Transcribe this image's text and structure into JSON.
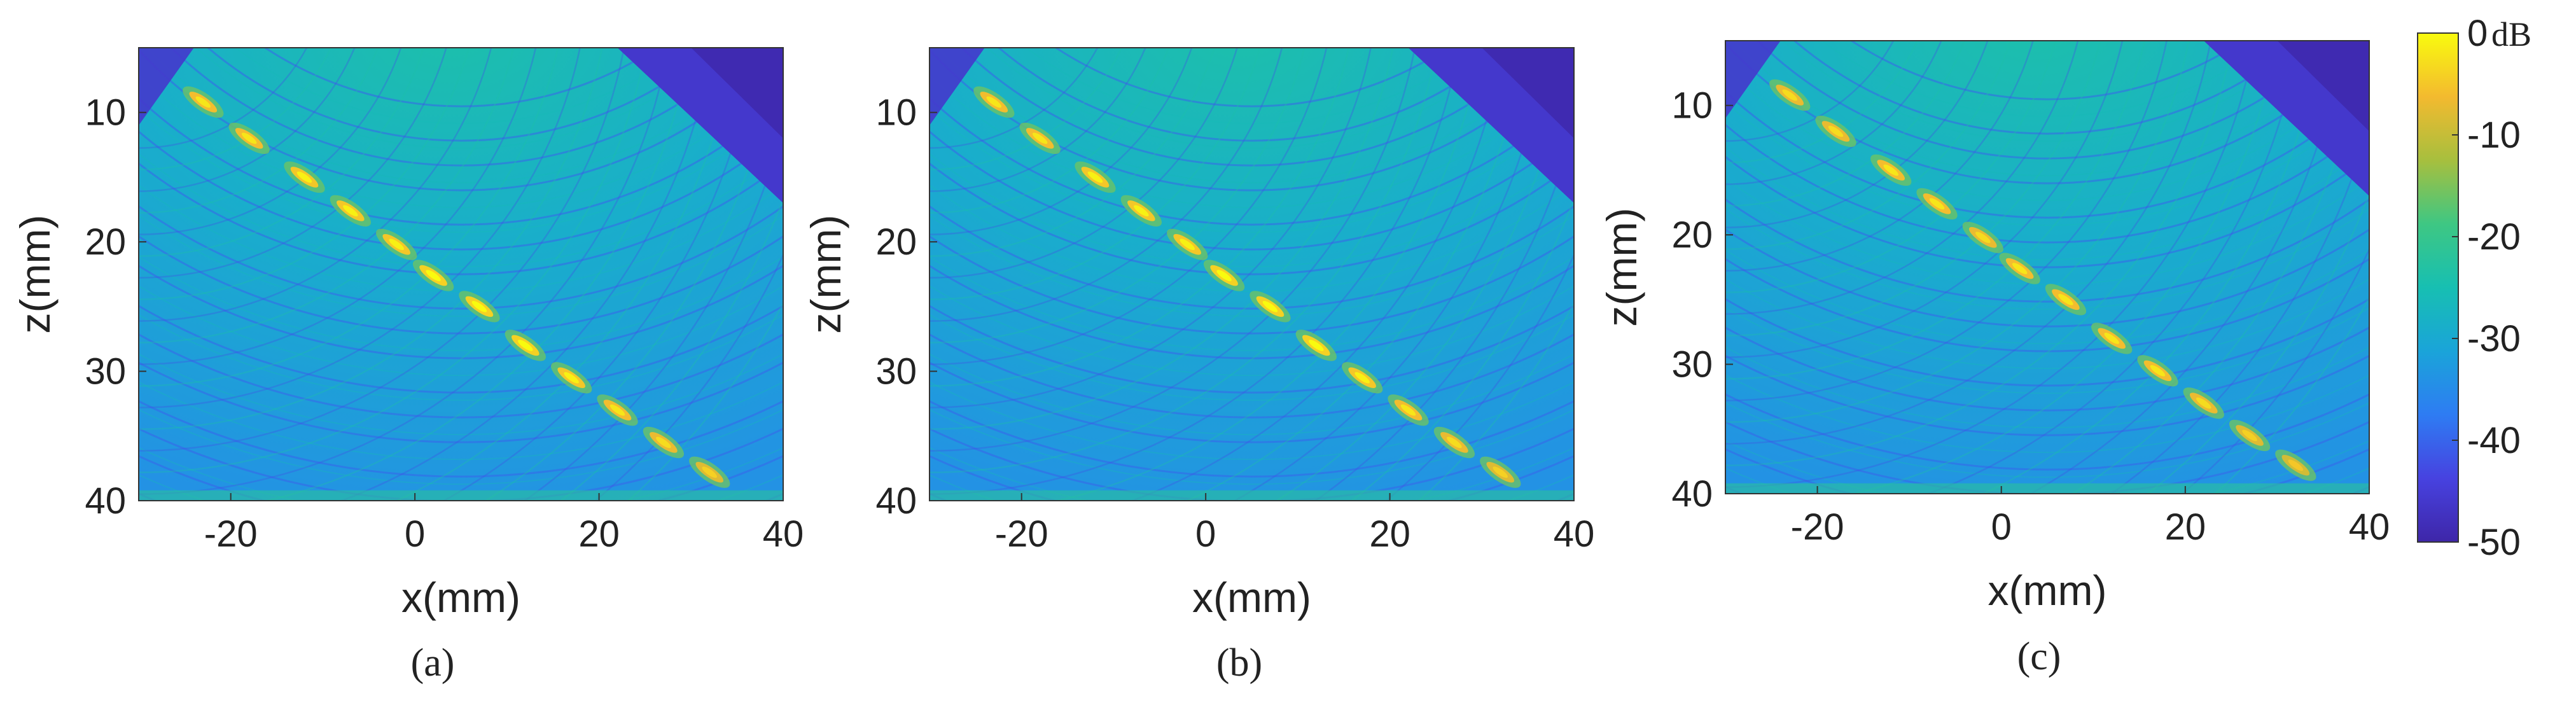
{
  "chart_data": [
    {
      "type": "heatmap",
      "panel_label": "(a)",
      "xlabel": "x(mm)",
      "ylabel": "z(mm)",
      "xlim": [
        -30,
        40
      ],
      "ylim": [
        5,
        40
      ],
      "x_ticks": [
        -20,
        0,
        20,
        40
      ],
      "y_ticks": [
        10,
        20,
        30,
        40
      ],
      "y_reversed": true,
      "value_range_db": [
        -50,
        0
      ],
      "point_targets": [
        {
          "x": -23,
          "z": 9.2,
          "db": -2
        },
        {
          "x": -18,
          "z": 12.0,
          "db": -2
        },
        {
          "x": -12,
          "z": 15.0,
          "db": -1
        },
        {
          "x": -7,
          "z": 17.6,
          "db": -1
        },
        {
          "x": -2,
          "z": 20.2,
          "db": -1
        },
        {
          "x": 2,
          "z": 22.6,
          "db": 0
        },
        {
          "x": 7,
          "z": 25.0,
          "db": 0
        },
        {
          "x": 12,
          "z": 28.0,
          "db": 0
        },
        {
          "x": 17,
          "z": 30.5,
          "db": -1
        },
        {
          "x": 22,
          "z": 33.0,
          "db": -2
        },
        {
          "x": 27,
          "z": 35.5,
          "db": -3
        },
        {
          "x": 32,
          "z": 37.8,
          "db": -4
        }
      ]
    },
    {
      "type": "heatmap",
      "panel_label": "(b)",
      "xlabel": "x(mm)",
      "ylabel": "z(mm)",
      "xlim": [
        -30,
        40
      ],
      "ylim": [
        5,
        40
      ],
      "x_ticks": [
        -20,
        0,
        20,
        40
      ],
      "y_ticks": [
        10,
        20,
        30,
        40
      ],
      "y_reversed": true,
      "value_range_db": [
        -50,
        0
      ],
      "point_targets": [
        {
          "x": -23,
          "z": 9.2,
          "db": -2
        },
        {
          "x": -18,
          "z": 12.0,
          "db": -2
        },
        {
          "x": -12,
          "z": 15.0,
          "db": -1
        },
        {
          "x": -7,
          "z": 17.6,
          "db": -1
        },
        {
          "x": -2,
          "z": 20.2,
          "db": -1
        },
        {
          "x": 2,
          "z": 22.6,
          "db": 0
        },
        {
          "x": 7,
          "z": 25.0,
          "db": 0
        },
        {
          "x": 12,
          "z": 28.0,
          "db": 0
        },
        {
          "x": 17,
          "z": 30.5,
          "db": -1
        },
        {
          "x": 22,
          "z": 33.0,
          "db": -2
        },
        {
          "x": 27,
          "z": 35.5,
          "db": -3
        },
        {
          "x": 32,
          "z": 37.8,
          "db": -4
        }
      ]
    },
    {
      "type": "heatmap",
      "panel_label": "(c)",
      "xlabel": "x(mm)",
      "ylabel": "z(mm)",
      "xlim": [
        -30,
        40
      ],
      "ylim": [
        5,
        40
      ],
      "x_ticks": [
        -20,
        0,
        20,
        40
      ],
      "y_ticks": [
        10,
        20,
        30,
        40
      ],
      "y_reversed": true,
      "value_range_db": [
        -50,
        0
      ],
      "point_targets": [
        {
          "x": -23,
          "z": 9.2,
          "db": -3
        },
        {
          "x": -18,
          "z": 12.0,
          "db": -3
        },
        {
          "x": -12,
          "z": 15.0,
          "db": -2
        },
        {
          "x": -7,
          "z": 17.6,
          "db": -2
        },
        {
          "x": -2,
          "z": 20.2,
          "db": -3
        },
        {
          "x": 2,
          "z": 22.6,
          "db": -2
        },
        {
          "x": 7,
          "z": 25.0,
          "db": -2
        },
        {
          "x": 12,
          "z": 28.0,
          "db": -2
        },
        {
          "x": 17,
          "z": 30.5,
          "db": -2
        },
        {
          "x": 22,
          "z": 33.0,
          "db": -3
        },
        {
          "x": 27,
          "z": 35.5,
          "db": -4
        },
        {
          "x": 32,
          "z": 37.8,
          "db": -5
        }
      ]
    }
  ],
  "colorbar": {
    "unit": "dB",
    "ticks": [
      "0",
      "-10",
      "-20",
      "-30",
      "-40",
      "-50"
    ],
    "range": [
      -50,
      0
    ],
    "colormap": "parula",
    "stops": [
      "#3e26a8",
      "#4742e0",
      "#2e7cf3",
      "#1aa4d9",
      "#17bfb2",
      "#3ec783",
      "#a7bf3e",
      "#f3ba2f",
      "#f9fb0e"
    ]
  }
}
